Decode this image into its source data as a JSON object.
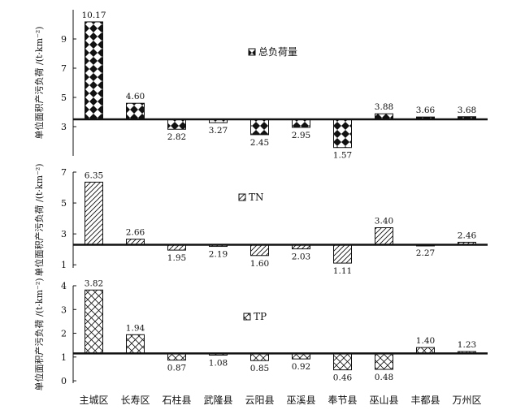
{
  "categories": [
    "主城区",
    "长寿区",
    "石柱县",
    "武隆县",
    "云阳县",
    "巫溪县",
    "奉节县",
    "巫山县",
    "丰都县",
    "万州区"
  ],
  "ylabel": "单位面积产污负荷 /(t·km⁻²)",
  "chart_data": [
    {
      "type": "bar",
      "legend": "总负荷量",
      "baseline": 3.5,
      "ylim": [
        1,
        11
      ],
      "yticks": [
        "3",
        "5",
        "7",
        "9"
      ],
      "ytick_values": [
        3,
        5,
        7,
        9
      ],
      "values": [
        10.17,
        4.6,
        2.82,
        3.27,
        2.45,
        2.95,
        1.57,
        3.88,
        3.66,
        3.68
      ],
      "labels": [
        "10.17",
        "4.60",
        "2.82",
        "3.27",
        "2.45",
        "2.95",
        "1.57",
        "3.88",
        "3.66",
        "3.68"
      ],
      "pattern": "diamond-checker"
    },
    {
      "type": "bar",
      "legend": "TN",
      "baseline": 2.3,
      "ylim": [
        0.8,
        7
      ],
      "yticks": [
        "1",
        "3",
        "5",
        "7"
      ],
      "ytick_values": [
        1,
        3,
        5,
        7
      ],
      "values": [
        6.35,
        2.66,
        1.95,
        2.19,
        1.6,
        2.03,
        1.11,
        3.4,
        2.27,
        2.46
      ],
      "labels": [
        "6.35",
        "2.66",
        "1.95",
        "2.19",
        "1.60",
        "2.03",
        "1.11",
        "3.40",
        "2.27",
        "2.46"
      ],
      "pattern": "diagonal-hatch"
    },
    {
      "type": "bar",
      "legend": "TP",
      "baseline": 1.15,
      "ylim": [
        -0.1,
        4
      ],
      "yticks": [
        "0",
        "1",
        "2",
        "3",
        "4"
      ],
      "ytick_values": [
        0,
        1,
        2,
        3,
        4
      ],
      "values": [
        3.82,
        1.94,
        0.87,
        1.08,
        0.85,
        0.92,
        0.46,
        0.48,
        1.4,
        1.23
      ],
      "labels": [
        "3.82",
        "1.94",
        "0.87",
        "1.08",
        "0.85",
        "0.92",
        "0.46",
        "0.48",
        "1.40",
        "1.23"
      ],
      "pattern": "cross-hatch"
    }
  ]
}
